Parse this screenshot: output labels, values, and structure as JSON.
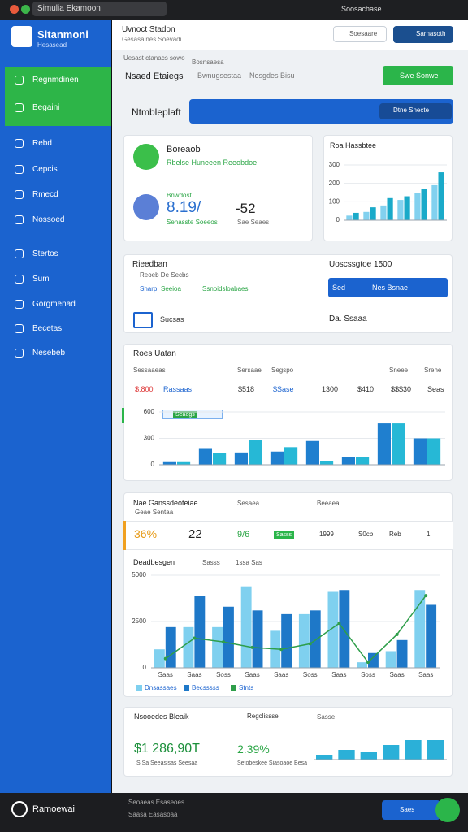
{
  "window": {
    "title": "Simulia Ekamoon",
    "account": "Soosachase"
  },
  "sidebar": {
    "brand": "Sitanmoni",
    "brand_sub": "Hesasead",
    "items": [
      "Regnmdinen",
      "Begaini",
      "Rebd",
      "Cepcis",
      "Rmecd",
      "Nossoed",
      "Stertos",
      "Sum",
      "Gorgmenad",
      "Becetas",
      "Nesebeb"
    ]
  },
  "header": {
    "title": "Uvnoct Stadon",
    "subtitle": "Gesasaines Soevadi",
    "search": "Soesaare",
    "user": "Sarnasoth"
  },
  "tabs": {
    "crumb": "Uesast ctanacs sowo",
    "crumb2": "Bosnsaesa",
    "items": [
      "Nsaed Etaiegs",
      "Bwnugsestaa",
      "Nesgdes Bisu"
    ],
    "button": "Swe Sonwe"
  },
  "banner": {
    "label": "Ntmbleplaft",
    "button": "Dtne Snecte"
  },
  "status_card": {
    "title": "Boreaob",
    "subtitle": "Rbelse Huneeen Reeobdoe",
    "stat_label": "Bnwdost",
    "stat_value": "8.19/",
    "stat_sub": "Senasste Soeeos",
    "stat2": "-52",
    "stat2_sub": "Sae Seaes"
  },
  "mini_chart": {
    "type": "bar",
    "title": "Roa Hassbtee",
    "ylim": [
      0,
      300
    ],
    "yticks": [
      0,
      100,
      200,
      300
    ],
    "series": [
      {
        "color": "#82d1ef",
        "values": [
          25,
          45,
          80,
          110,
          150,
          190
        ]
      },
      {
        "color": "#1aaac9",
        "values": [
          40,
          70,
          120,
          130,
          170,
          260
        ]
      }
    ]
  },
  "filters": {
    "title": "Rieedban",
    "option": "Reoeb De Secbs",
    "legend": [
      "Sharp",
      "Seeioa",
      "Ssnoidsloabaes"
    ],
    "right_title": "Uoscssgtoe 1500",
    "select": "Sed",
    "select2": "Nes Bsnae",
    "row_label": "Sucsas",
    "row_value": "Da. Ssaaa"
  },
  "chart2": {
    "type": "bar",
    "title": "Roes Uatan",
    "headers": [
      "Sessaaeas",
      "Sersaae",
      "Segspo",
      "Sneee",
      "Srene"
    ],
    "row": [
      "$.800",
      "Rassaas",
      "$518",
      "$Sase",
      "1300",
      "$410",
      "$$$30",
      "Seas"
    ],
    "badge": "Seaegs",
    "ylim": [
      0,
      600
    ],
    "yticks": [
      0,
      300,
      600
    ],
    "series": [
      {
        "color": "#1f7fcf",
        "values": [
          30,
          180,
          140,
          150,
          270,
          90,
          470,
          300
        ]
      },
      {
        "color": "#26b8d6",
        "values": [
          30,
          130,
          280,
          200,
          40,
          90,
          470,
          300
        ]
      }
    ]
  },
  "chart3": {
    "type": "bar",
    "title": "Nae Ganssdeoteiae",
    "subtitle": "Geae Sentaa",
    "headers": [
      "Sesaea",
      "Beeaea"
    ],
    "summary": [
      "36%",
      "22",
      "9/6",
      "Sasss",
      "1999",
      "S0cb",
      "Reb",
      "1"
    ],
    "legend_title": "Deadbesgen",
    "legend_note": "Sasss",
    "legend_note2": "1ssa Sas",
    "ylim": [
      0,
      5000
    ],
    "yticks": [
      0,
      2500,
      5000
    ],
    "categories": [
      "Saas",
      "Saas",
      "Soss",
      "Saas",
      "Saas",
      "Soss",
      "Saas",
      "Soss",
      "Saas",
      "Saas"
    ],
    "series": [
      {
        "name": "Dnsassaes",
        "color": "#7fd0ef",
        "values": [
          1000,
          2200,
          2200,
          4400,
          2000,
          2900,
          4100,
          300,
          900,
          4200
        ]
      },
      {
        "name": "Becsssss",
        "color": "#1e78c8",
        "values": [
          2200,
          3900,
          3300,
          3100,
          2900,
          3100,
          4200,
          800,
          1500,
          3400
        ]
      },
      {
        "name": "Stnts",
        "type": "line",
        "color": "#2e9e4a",
        "values": [
          500,
          1600,
          1400,
          1100,
          1000,
          1300,
          2400,
          300,
          1800,
          3900
        ]
      }
    ]
  },
  "chart4": {
    "type": "bar",
    "title": "Nsooedes Bleaik",
    "note": "Regclissse",
    "note2": "Sasse",
    "kpi1": "$1 286,90T",
    "kpi1_sub": "S.Sa Seeasisas Seesaa",
    "kpi2": "2.39%",
    "kpi2_sub": "Setobeskee Siasoaoe Besa",
    "ylim": [
      0,
      100
    ],
    "series": [
      {
        "color": "#2bb0d8",
        "values": [
          20,
          40,
          30,
          60,
          80,
          80
        ]
      }
    ]
  },
  "footer": {
    "brand": "Ramoewai",
    "line1": "Seoaeas Esaseoes",
    "line2": "Saasa Easasoaa",
    "button": "Saes"
  }
}
